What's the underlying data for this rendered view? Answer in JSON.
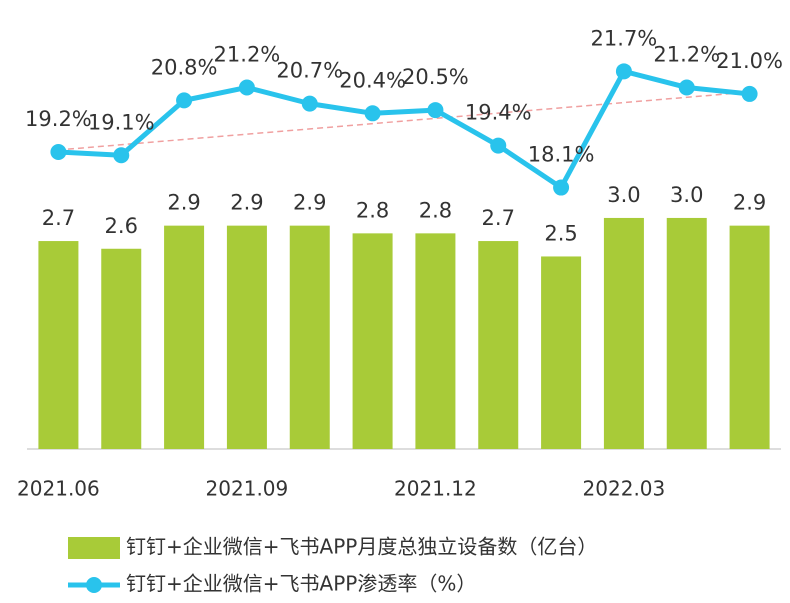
{
  "chart_data": {
    "type": "bar_line",
    "categories": [
      "2021.06",
      null,
      null,
      "2021.09",
      null,
      null,
      "2021.12",
      null,
      null,
      "2022.03",
      null,
      null
    ],
    "series": [
      {
        "name": "钉钉+企业微信+飞书APP月度总独立设备数（亿台）",
        "type": "bar",
        "color": "#a8cb38",
        "values": [
          2.7,
          2.6,
          2.9,
          2.9,
          2.9,
          2.8,
          2.8,
          2.7,
          2.5,
          3.0,
          3.0,
          2.9
        ],
        "value_labels": [
          "2.7",
          "2.6",
          "2.9",
          "2.9",
          "2.9",
          "2.8",
          "2.8",
          "2.7",
          "2.5",
          "3.0",
          "3.0",
          "2.9"
        ]
      },
      {
        "name": "钉钉+企业微信+飞书APP渗透率（%）",
        "type": "line",
        "axis": "y2",
        "color": "#29c3ec",
        "values": [
          19.2,
          19.1,
          20.8,
          21.2,
          20.7,
          20.4,
          20.5,
          19.4,
          18.1,
          21.7,
          21.2,
          21.0
        ],
        "value_labels": [
          "19.2%",
          "19.1%",
          "20.8%",
          "21.2%",
          "20.7%",
          "20.4%",
          "20.5%",
          "19.4%",
          "18.1%",
          "21.7%",
          "21.2%",
          "21.0%"
        ]
      }
    ],
    "ylim": [
      0,
      5.7
    ],
    "y2lim": [
      10,
      23.6
    ]
  }
}
